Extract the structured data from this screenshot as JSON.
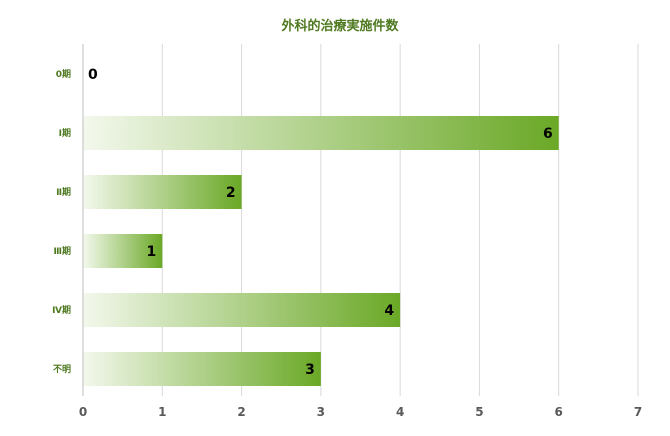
{
  "chart_data": {
    "type": "bar",
    "orientation": "horizontal",
    "title": "外科的治療実施件数",
    "xlabel": "",
    "ylabel": "",
    "categories": [
      "0期",
      "Ⅰ期",
      "Ⅱ期",
      "Ⅲ期",
      "Ⅳ期",
      "不明"
    ],
    "values": [
      0,
      6,
      2,
      1,
      4,
      3
    ],
    "data_labels": [
      "0",
      "6",
      "2",
      "1",
      "4",
      "3"
    ],
    "xlim": [
      0,
      7
    ],
    "ticks": [
      "0",
      "1",
      "2",
      "3",
      "4",
      "5",
      "6",
      "7"
    ],
    "grid": true,
    "legend": "none",
    "colors": {
      "bar_start": "#f3f8ec",
      "bar_end": "#6aa826",
      "title": "#4f7a21",
      "category_label": "#4f7a21",
      "tick_label": "#595959",
      "data_label": "#000000",
      "gridline": "#d9d9d9",
      "axis": "#bfbfbf"
    }
  }
}
